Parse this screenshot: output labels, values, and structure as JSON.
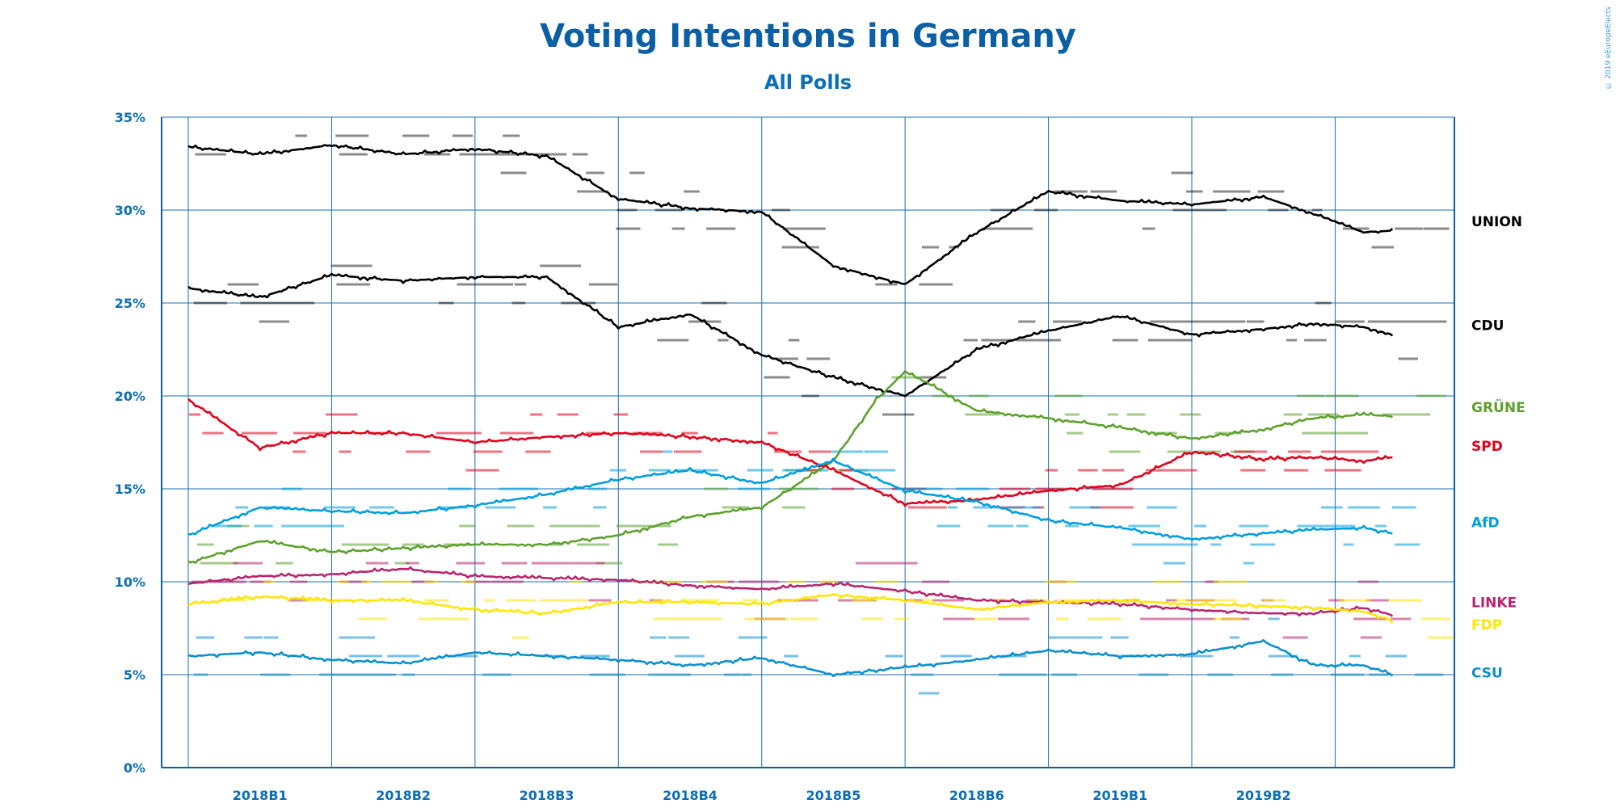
{
  "credit": "© 2019 eEuropeElects",
  "chart_data": {
    "type": "line",
    "title": "Voting Intentions in Germany",
    "subtitle": "All Polls",
    "ylabel": "",
    "xlabel": "",
    "ylim": [
      0,
      35
    ],
    "yticks": [
      "0%",
      "5%",
      "10%",
      "15%",
      "20%",
      "25%",
      "30%",
      "35%"
    ],
    "xlim": [
      0,
      8.55
    ],
    "periods": [
      "2018B1",
      "2018B2",
      "2018B3",
      "2018B4",
      "2018B5",
      "2018B6",
      "2019B1",
      "2019B2"
    ],
    "grid": true,
    "legend_placement": "right",
    "series": [
      {
        "name": "UNION",
        "color": "#000000",
        "x": [
          0,
          0.5,
          1,
          1.5,
          2,
          2.5,
          3,
          3.5,
          4,
          4.5,
          5,
          5.5,
          6,
          6.5,
          7,
          7.5,
          7.85,
          8.2,
          8.4
        ],
        "values": [
          33.4,
          33.0,
          33.5,
          33.0,
          33.3,
          32.9,
          30.6,
          30.1,
          29.9,
          27.0,
          26.0,
          28.8,
          31.0,
          30.5,
          30.3,
          30.7,
          29.8,
          28.8,
          28.9
        ]
      },
      {
        "name": "CDU",
        "color": "#000000",
        "x": [
          0,
          0.5,
          1,
          1.5,
          2,
          2.5,
          3,
          3.5,
          4,
          4.5,
          5,
          5.5,
          6,
          6.5,
          7,
          7.5,
          7.85,
          8.2,
          8.4
        ],
        "values": [
          25.8,
          25.3,
          26.5,
          26.2,
          26.4,
          26.4,
          23.7,
          24.4,
          22.2,
          21.0,
          20.0,
          22.5,
          23.5,
          24.3,
          23.3,
          23.6,
          23.9,
          23.7,
          23.3
        ]
      },
      {
        "name": "GRÜNE",
        "color": "#5da12c",
        "x": [
          0,
          0.5,
          1,
          1.5,
          2,
          2.5,
          3,
          3.5,
          4,
          4.5,
          4.8,
          5,
          5.2,
          5.5,
          6,
          6.5,
          7,
          7.5,
          7.85,
          8.2,
          8.4
        ],
        "values": [
          11.0,
          12.2,
          11.6,
          11.8,
          12.0,
          12.0,
          12.5,
          13.5,
          14.0,
          16.5,
          19.8,
          21.3,
          20.5,
          19.2,
          18.8,
          18.3,
          17.7,
          18.2,
          18.8,
          19.0,
          18.9
        ]
      },
      {
        "name": "SPD",
        "color": "#e3001b",
        "x": [
          0,
          0.5,
          1,
          1.5,
          2,
          2.5,
          3,
          3.5,
          4,
          4.5,
          5,
          5.5,
          6,
          6.5,
          7,
          7.5,
          7.85,
          8.2,
          8.4
        ],
        "values": [
          19.8,
          17.2,
          18.0,
          18.0,
          17.5,
          17.8,
          18.0,
          17.8,
          17.5,
          16.0,
          14.2,
          14.4,
          14.9,
          15.2,
          17.0,
          16.6,
          16.7,
          16.5,
          16.7
        ]
      },
      {
        "name": "AfD",
        "color": "#009ee0",
        "x": [
          0,
          0.5,
          1,
          1.5,
          2,
          2.5,
          3,
          3.5,
          4,
          4.5,
          5,
          5.5,
          6,
          6.5,
          7,
          7.5,
          7.85,
          8.2,
          8.4
        ],
        "values": [
          12.5,
          14.0,
          13.8,
          13.7,
          14.1,
          14.7,
          15.5,
          16.0,
          15.3,
          16.5,
          14.9,
          14.3,
          13.3,
          12.9,
          12.3,
          12.6,
          12.8,
          12.9,
          12.6
        ]
      },
      {
        "name": "LINKE",
        "color": "#b8256e",
        "x": [
          0,
          0.5,
          1,
          1.5,
          2,
          2.5,
          3,
          3.5,
          4,
          4.5,
          5,
          5.5,
          6,
          6.5,
          7,
          7.5,
          7.85,
          8.2,
          8.4
        ],
        "values": [
          9.9,
          10.3,
          10.4,
          10.7,
          10.3,
          10.2,
          10.1,
          9.8,
          9.6,
          9.9,
          9.5,
          9.0,
          8.9,
          8.8,
          8.5,
          8.3,
          8.3,
          8.6,
          8.2
        ]
      },
      {
        "name": "FDP",
        "color": "#ffe500",
        "x": [
          0,
          0.5,
          1,
          1.5,
          2,
          2.5,
          3,
          3.5,
          4,
          4.5,
          5,
          5.5,
          6,
          6.5,
          7,
          7.5,
          7.85,
          8.2,
          8.4
        ],
        "values": [
          8.8,
          9.2,
          9.0,
          9.0,
          8.5,
          8.3,
          8.9,
          8.9,
          8.8,
          9.3,
          9.0,
          8.5,
          8.9,
          9.0,
          8.8,
          8.7,
          8.6,
          8.4,
          7.9
        ]
      },
      {
        "name": "CSU",
        "color": "#0a8fcf",
        "x": [
          0,
          0.5,
          1,
          1.5,
          2,
          2.5,
          3,
          3.5,
          4,
          4.5,
          5,
          5.5,
          6,
          6.5,
          7,
          7.5,
          7.85,
          8.2,
          8.4
        ],
        "values": [
          6.0,
          6.2,
          5.8,
          5.6,
          6.2,
          6.0,
          5.8,
          5.5,
          5.9,
          5.0,
          5.4,
          5.8,
          6.3,
          6.0,
          6.1,
          6.8,
          5.5,
          5.5,
          5.0
        ]
      }
    ]
  }
}
